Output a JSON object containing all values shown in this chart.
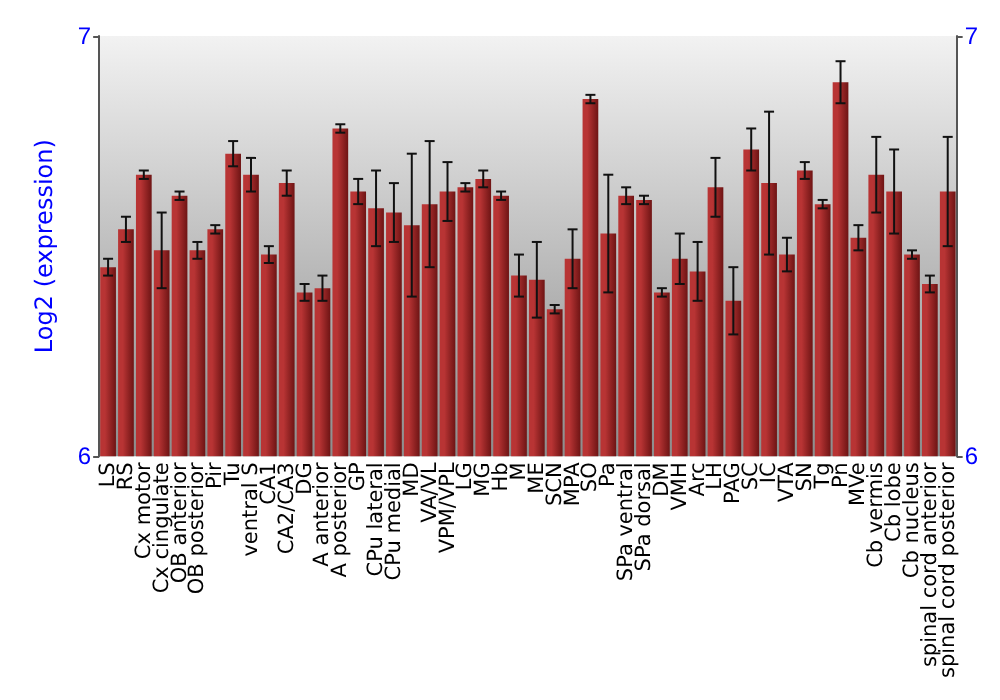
{
  "chart_data": {
    "type": "bar",
    "ylabel": "Log2 (expression)",
    "categories": [
      "LS",
      "RS",
      "Cx motor",
      "Cx cingulate",
      "OB anterior",
      "OB posterior",
      "Pir",
      "Tu",
      "ventral S",
      "CA1",
      "CA2/CA3",
      "DG",
      "A anterior",
      "A posterior",
      "GP",
      "CPu lateral",
      "CPu medial",
      "MD",
      "VA/VL",
      "VPM/VPL",
      "LG",
      "MG",
      "Hb",
      "M",
      "ME",
      "SCN",
      "MPA",
      "SO",
      "Pa",
      "SPa ventral",
      "SPa dorsal",
      "DM",
      "VMH",
      "Arc",
      "LH",
      "PAG",
      "SC",
      "IC",
      "VTA",
      "SN",
      "Tg",
      "Pn",
      "MVe",
      "Cb vermis",
      "Cb lobe",
      "Cb nucleus",
      "spinal cord anterior",
      "spinal cord posterior"
    ],
    "values": [
      6.45,
      6.54,
      6.67,
      6.49,
      6.62,
      6.49,
      6.54,
      6.72,
      6.67,
      6.48,
      6.65,
      6.39,
      6.4,
      6.78,
      6.63,
      6.59,
      6.58,
      6.55,
      6.6,
      6.63,
      6.64,
      6.66,
      6.62,
      6.43,
      6.42,
      6.35,
      6.47,
      6.85,
      6.53,
      6.62,
      6.61,
      6.39,
      6.47,
      6.44,
      6.64,
      6.37,
      6.73,
      6.65,
      6.48,
      6.68,
      6.6,
      6.89,
      6.52,
      6.67,
      6.63,
      6.48,
      6.41,
      6.63
    ],
    "errors": [
      0.02,
      0.03,
      0.01,
      0.09,
      0.01,
      0.02,
      0.01,
      0.03,
      0.04,
      0.02,
      0.03,
      0.02,
      0.03,
      0.01,
      0.03,
      0.09,
      0.07,
      0.17,
      0.15,
      0.07,
      0.01,
      0.02,
      0.01,
      0.05,
      0.09,
      0.01,
      0.07,
      0.01,
      0.14,
      0.02,
      0.01,
      0.01,
      0.06,
      0.07,
      0.07,
      0.08,
      0.05,
      0.17,
      0.04,
      0.02,
      0.01,
      0.05,
      0.03,
      0.09,
      0.1,
      0.01,
      0.02,
      0.13
    ],
    "color": "#b83434",
    "ylim": [
      6,
      7
    ],
    "yticks": [
      6,
      7
    ],
    "y2lim": [
      6,
      7
    ],
    "y2ticks": [
      6,
      7
    ],
    "grid": false
  }
}
